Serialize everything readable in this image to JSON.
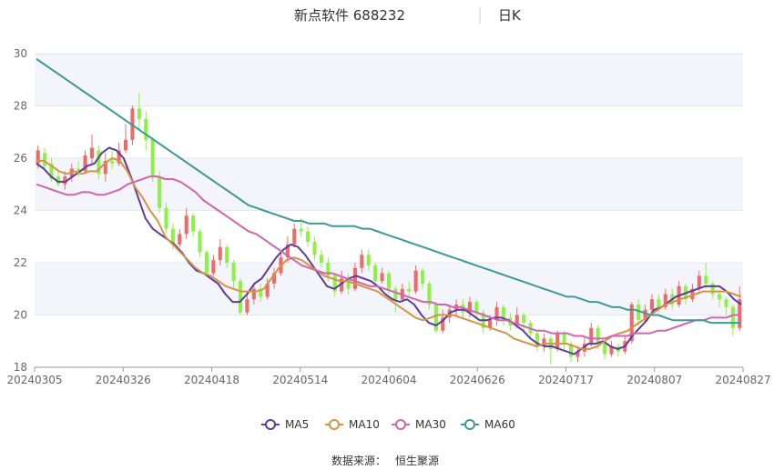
{
  "header": {
    "stock_name": "新点软件 688232",
    "period": "日K"
  },
  "footer": {
    "source_label": "数据来源：",
    "source_name": "恒生聚源"
  },
  "colors": {
    "up": "#ec6a6a",
    "down": "#8ff04a",
    "MA5": "#5e3c99",
    "MA10": "#d59443",
    "MA30": "#d065b1",
    "MA60": "#3d9a98",
    "band": "#f4f5fa"
  },
  "chart_data": {
    "type": "candlestick",
    "x_labels": [
      "20240305",
      "20240326",
      "20240418",
      "20240514",
      "20240604",
      "20240626",
      "20240717",
      "20240807",
      "20240827"
    ],
    "ylim": [
      18,
      30
    ],
    "yticks": [
      18,
      20,
      22,
      24,
      26,
      28,
      30
    ],
    "grid": "horizontal, alternating bands",
    "legend_position": "bottom",
    "legend": [
      {
        "key": "MA5",
        "label": "MA5"
      },
      {
        "key": "MA10",
        "label": "MA10"
      },
      {
        "key": "MA30",
        "label": "MA30"
      },
      {
        "key": "MA60",
        "label": "MA60"
      }
    ],
    "candles": [
      [
        25.8,
        26.3,
        26.5,
        25.6
      ],
      [
        26.2,
        25.7,
        26.4,
        25.5
      ],
      [
        25.8,
        25.2,
        26.0,
        25.1
      ],
      [
        25.3,
        25.0,
        25.5,
        24.9
      ],
      [
        25.0,
        25.3,
        25.5,
        24.8
      ],
      [
        25.3,
        25.6,
        25.8,
        25.1
      ],
      [
        25.6,
        25.5,
        25.9,
        25.3
      ],
      [
        25.5,
        26.1,
        26.3,
        25.4
      ],
      [
        26.0,
        26.4,
        26.9,
        25.8
      ],
      [
        26.3,
        25.4,
        26.5,
        25.2
      ],
      [
        25.4,
        25.9,
        26.2,
        25.1
      ],
      [
        25.9,
        25.8,
        26.3,
        25.6
      ],
      [
        25.8,
        26.3,
        26.6,
        25.7
      ],
      [
        26.3,
        26.7,
        27.3,
        26.2
      ],
      [
        26.7,
        27.9,
        28.0,
        26.5
      ],
      [
        27.9,
        27.5,
        28.5,
        27.1
      ],
      [
        27.5,
        26.7,
        27.8,
        26.3
      ],
      [
        26.7,
        25.3,
        26.8,
        25.1
      ],
      [
        25.3,
        24.1,
        25.5,
        23.9
      ],
      [
        24.1,
        23.3,
        24.3,
        23.1
      ],
      [
        23.3,
        22.7,
        23.5,
        22.5
      ],
      [
        22.7,
        23.1,
        23.3,
        22.6
      ],
      [
        23.1,
        23.8,
        24.1,
        22.9
      ],
      [
        23.8,
        23.2,
        23.9,
        23.0
      ],
      [
        23.2,
        22.4,
        23.3,
        22.2
      ],
      [
        22.4,
        21.6,
        22.5,
        21.5
      ],
      [
        21.6,
        22.1,
        22.3,
        21.5
      ],
      [
        22.1,
        22.6,
        22.9,
        21.9
      ],
      [
        22.6,
        22.0,
        22.7,
        21.8
      ],
      [
        22.0,
        21.3,
        22.1,
        21.0
      ],
      [
        21.3,
        20.1,
        21.4,
        20.0
      ],
      [
        20.1,
        20.6,
        20.9,
        20.0
      ],
      [
        20.6,
        21.0,
        21.2,
        20.4
      ],
      [
        21.0,
        20.7,
        21.2,
        20.5
      ],
      [
        20.7,
        21.2,
        21.4,
        20.6
      ],
      [
        21.2,
        21.6,
        21.8,
        21.0
      ],
      [
        21.6,
        22.2,
        22.4,
        21.5
      ],
      [
        22.2,
        22.7,
        23.0,
        22.0
      ],
      [
        22.7,
        23.3,
        23.5,
        22.6
      ],
      [
        23.3,
        23.2,
        23.7,
        23.0
      ],
      [
        23.2,
        22.8,
        23.4,
        22.6
      ],
      [
        22.8,
        22.3,
        23.0,
        22.1
      ],
      [
        22.3,
        22.0,
        22.5,
        21.8
      ],
      [
        22.0,
        21.5,
        22.2,
        21.3
      ],
      [
        21.5,
        20.9,
        21.6,
        20.7
      ],
      [
        20.9,
        21.4,
        21.7,
        20.8
      ],
      [
        21.4,
        21.0,
        21.6,
        20.8
      ],
      [
        21.0,
        21.8,
        22.0,
        20.9
      ],
      [
        21.8,
        22.3,
        22.5,
        21.6
      ],
      [
        22.3,
        21.9,
        22.5,
        21.7
      ],
      [
        21.9,
        21.3,
        22.0,
        21.1
      ],
      [
        21.3,
        21.6,
        21.8,
        21.2
      ],
      [
        21.6,
        21.0,
        21.7,
        20.8
      ],
      [
        21.0,
        20.6,
        21.1,
        20.1
      ],
      [
        20.6,
        21.0,
        21.2,
        20.5
      ],
      [
        21.0,
        20.9,
        21.3,
        20.7
      ],
      [
        20.9,
        21.7,
        21.9,
        20.8
      ],
      [
        21.7,
        21.2,
        21.8,
        21.0
      ],
      [
        21.2,
        20.4,
        21.3,
        20.2
      ],
      [
        20.4,
        19.4,
        20.5,
        19.3
      ],
      [
        19.4,
        19.9,
        20.2,
        19.3
      ],
      [
        19.9,
        20.2,
        20.4,
        19.7
      ],
      [
        20.2,
        20.4,
        20.6,
        20.0
      ],
      [
        20.4,
        20.1,
        20.6,
        19.9
      ],
      [
        20.1,
        20.5,
        20.7,
        19.9
      ],
      [
        20.5,
        20.1,
        20.6,
        19.9
      ],
      [
        20.1,
        19.5,
        20.2,
        19.3
      ],
      [
        19.5,
        19.8,
        20.0,
        19.4
      ],
      [
        19.8,
        20.3,
        20.5,
        19.6
      ],
      [
        20.3,
        19.9,
        20.4,
        19.6
      ],
      [
        19.9,
        19.6,
        20.1,
        19.4
      ],
      [
        19.6,
        20.0,
        20.3,
        19.5
      ],
      [
        20.0,
        19.7,
        20.1,
        19.4
      ],
      [
        19.7,
        19.3,
        19.8,
        19.1
      ],
      [
        19.3,
        18.8,
        19.4,
        18.6
      ],
      [
        18.8,
        19.1,
        19.3,
        18.6
      ],
      [
        19.1,
        18.7,
        19.2,
        18.1
      ],
      [
        18.7,
        19.3,
        19.4,
        18.6
      ],
      [
        19.3,
        18.9,
        19.4,
        18.7
      ],
      [
        18.9,
        18.4,
        19.0,
        18.2
      ],
      [
        18.4,
        18.6,
        18.8,
        18.2
      ],
      [
        18.6,
        18.9,
        19.1,
        18.4
      ],
      [
        18.9,
        19.5,
        19.7,
        18.8
      ],
      [
        19.5,
        18.9,
        19.6,
        18.7
      ],
      [
        18.9,
        18.5,
        19.0,
        18.3
      ],
      [
        18.5,
        18.8,
        19.0,
        18.4
      ],
      [
        18.8,
        18.6,
        18.9,
        18.4
      ],
      [
        18.6,
        19.0,
        19.2,
        18.5
      ],
      [
        19.0,
        20.4,
        20.5,
        18.9
      ],
      [
        20.4,
        19.8,
        20.6,
        19.6
      ],
      [
        19.8,
        20.2,
        20.4,
        19.7
      ],
      [
        20.2,
        20.6,
        20.8,
        20.0
      ],
      [
        20.6,
        20.3,
        20.8,
        20.1
      ],
      [
        20.3,
        20.8,
        21.0,
        20.2
      ],
      [
        20.8,
        20.4,
        21.0,
        20.2
      ],
      [
        20.4,
        21.1,
        21.3,
        20.3
      ],
      [
        21.1,
        20.6,
        21.2,
        20.4
      ],
      [
        20.6,
        21.0,
        21.2,
        20.5
      ],
      [
        21.0,
        21.5,
        21.7,
        20.9
      ],
      [
        21.5,
        21.2,
        22.0,
        21.0
      ],
      [
        21.2,
        20.8,
        21.3,
        20.6
      ],
      [
        20.8,
        20.6,
        20.9,
        20.3
      ],
      [
        20.6,
        20.3,
        20.7,
        20.0
      ],
      [
        20.3,
        19.5,
        20.4,
        19.2
      ],
      [
        19.5,
        20.6,
        21.1,
        19.4
      ]
    ],
    "ma": {
      "MA5": [
        25.8,
        25.6,
        25.3,
        25.1,
        25.1,
        25.3,
        25.5,
        25.7,
        25.8,
        26.2,
        26.4,
        26.3,
        26.0,
        25.3,
        24.5,
        23.7,
        23.3,
        23.1,
        22.9,
        22.7,
        22.4,
        22.0,
        21.7,
        21.6,
        21.4,
        21.2,
        20.8,
        20.5,
        20.5,
        20.8,
        21.2,
        21.4,
        21.8,
        22.2,
        22.5,
        22.7,
        22.6,
        22.3,
        21.9,
        21.5,
        21.1,
        21.0,
        21.2,
        21.4,
        21.5,
        21.4,
        21.3,
        21.1,
        20.8,
        20.6,
        20.5,
        20.6,
        20.4,
        20.0,
        19.7,
        19.6,
        19.8,
        20.1,
        20.2,
        20.2,
        20.0,
        19.8,
        19.8,
        19.9,
        19.9,
        19.8,
        19.6,
        19.4,
        19.1,
        18.9,
        18.8,
        18.8,
        18.7,
        18.6,
        18.5,
        18.7,
        18.9,
        18.9,
        19.0,
        18.8,
        18.7,
        18.8,
        19.2,
        19.5,
        19.8,
        20.2,
        20.3,
        20.5,
        20.7,
        20.8,
        20.9,
        21.0,
        21.1,
        21.1,
        21.1,
        20.9,
        20.6,
        20.4
      ],
      "MA10": [
        25.9,
        25.9,
        25.7,
        25.5,
        25.4,
        25.5,
        25.4,
        25.5,
        25.5,
        25.8,
        26.0,
        25.9,
        25.5,
        24.9,
        24.5,
        24.0,
        23.6,
        23.0,
        22.7,
        22.4,
        22.1,
        21.8,
        21.6,
        21.5,
        21.3,
        21.1,
        21.0,
        20.9,
        20.9,
        20.9,
        21.0,
        21.4,
        21.8,
        22.1,
        22.2,
        22.1,
        21.9,
        21.7,
        21.5,
        21.4,
        21.3,
        21.3,
        21.2,
        21.1,
        21.0,
        20.9,
        20.7,
        20.5,
        20.3,
        20.1,
        19.9,
        19.8,
        19.9,
        20.0,
        20.0,
        20.0,
        19.9,
        19.8,
        19.7,
        19.6,
        19.5,
        19.4,
        19.3,
        19.1,
        19.0,
        18.9,
        18.8,
        18.9,
        18.9,
        18.9,
        18.9,
        18.8,
        18.7,
        18.7,
        18.8,
        19.0,
        19.2,
        19.3,
        19.4,
        19.6,
        19.8,
        20.0,
        20.2,
        20.4,
        20.5,
        20.6,
        20.7,
        20.8,
        20.9,
        20.9,
        20.9,
        20.9,
        20.8,
        20.7
      ],
      "MA30": [
        25.0,
        24.9,
        24.8,
        24.7,
        24.6,
        24.6,
        24.7,
        24.7,
        24.6,
        24.6,
        24.7,
        24.8,
        25.0,
        25.1,
        25.2,
        25.3,
        25.3,
        25.2,
        25.2,
        25.1,
        24.9,
        24.7,
        24.4,
        24.2,
        24.0,
        23.8,
        23.6,
        23.4,
        23.2,
        23.1,
        22.9,
        22.7,
        22.5,
        22.3,
        22.1,
        21.9,
        21.8,
        21.7,
        21.6,
        21.6,
        21.5,
        21.4,
        21.3,
        21.2,
        21.1,
        21.1,
        21.0,
        20.9,
        20.8,
        20.7,
        20.6,
        20.5,
        20.5,
        20.4,
        20.4,
        20.3,
        20.3,
        20.2,
        20.1,
        20.0,
        19.9,
        19.8,
        19.8,
        19.7,
        19.6,
        19.5,
        19.4,
        19.4,
        19.3,
        19.3,
        19.3,
        19.2,
        19.2,
        19.1,
        19.1,
        19.1,
        19.2,
        19.2,
        19.2,
        19.3,
        19.3,
        19.3,
        19.4,
        19.4,
        19.5,
        19.6,
        19.7,
        19.8,
        19.8,
        19.9,
        19.9,
        19.9,
        20.0,
        20.0
      ],
      "MA60": [
        29.8,
        29.6,
        29.4,
        29.2,
        29.0,
        28.8,
        28.6,
        28.4,
        28.2,
        28.0,
        27.8,
        27.6,
        27.4,
        27.2,
        27.0,
        26.8,
        26.6,
        26.4,
        26.2,
        26.0,
        25.8,
        25.6,
        25.4,
        25.2,
        25.0,
        24.8,
        24.6,
        24.4,
        24.2,
        24.1,
        24.0,
        23.9,
        23.8,
        23.7,
        23.6,
        23.6,
        23.5,
        23.5,
        23.5,
        23.4,
        23.4,
        23.4,
        23.4,
        23.3,
        23.3,
        23.2,
        23.1,
        23.0,
        22.9,
        22.8,
        22.7,
        22.6,
        22.5,
        22.4,
        22.3,
        22.2,
        22.1,
        22.0,
        21.9,
        21.8,
        21.7,
        21.6,
        21.5,
        21.4,
        21.3,
        21.2,
        21.1,
        21.0,
        20.9,
        20.8,
        20.7,
        20.7,
        20.6,
        20.5,
        20.5,
        20.4,
        20.3,
        20.3,
        20.2,
        20.2,
        20.1,
        20.0,
        20.0,
        19.9,
        19.8,
        19.8,
        19.8,
        19.8,
        19.8,
        19.7,
        19.7,
        19.7,
        19.7,
        19.7
      ]
    }
  }
}
